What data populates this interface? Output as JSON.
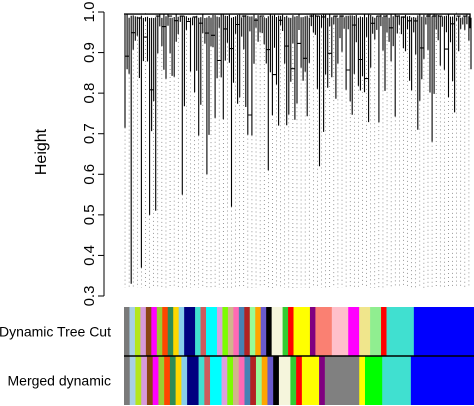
{
  "chart_data": {
    "type": "dendrogram",
    "ylabel": "Height",
    "ylim": [
      0.3,
      1.0
    ],
    "yticks": [
      "0.3",
      "0.4",
      "0.5",
      "0.6",
      "0.7",
      "0.8",
      "0.9",
      "1.0"
    ],
    "grid": false,
    "notable_branch_heights": [
      0.33,
      0.37,
      0.5,
      0.51,
      0.52,
      0.55,
      0.6,
      0.61,
      0.62,
      0.68,
      0.71,
      0.78,
      0.83
    ],
    "color_rows": [
      {
        "label": "Dynamic Tree Cut",
        "segments": [
          {
            "color": "#7a7a7a",
            "weight": 1
          },
          {
            "color": "#a8d0e6",
            "weight": 1
          },
          {
            "color": "#b5e61d",
            "weight": 1
          },
          {
            "color": "#d89adb",
            "weight": 1
          },
          {
            "color": "#8b4513",
            "weight": 1
          },
          {
            "color": "#ff00ff",
            "weight": 1
          },
          {
            "color": "#9acd32",
            "weight": 1
          },
          {
            "color": "#ff4500",
            "weight": 1
          },
          {
            "color": "#2e8b57",
            "weight": 1
          },
          {
            "color": "#ffd700",
            "weight": 1
          },
          {
            "color": "#87ceeb",
            "weight": 1
          },
          {
            "color": "#000080",
            "weight": 2
          },
          {
            "color": "#40e0d0",
            "weight": 1
          },
          {
            "color": "#cd5c5c",
            "weight": 1
          },
          {
            "color": "#00ffff",
            "weight": 2
          },
          {
            "color": "#dda0dd",
            "weight": 1
          },
          {
            "color": "#7cfc00",
            "weight": 1
          },
          {
            "color": "#d2b48c",
            "weight": 1
          },
          {
            "color": "#ff69b4",
            "weight": 1
          },
          {
            "color": "#4682b4",
            "weight": 1
          },
          {
            "color": "#b22222",
            "weight": 1
          },
          {
            "color": "#98fb98",
            "weight": 1
          },
          {
            "color": "#ffa500",
            "weight": 1
          },
          {
            "color": "#6a5acd",
            "weight": 1
          },
          {
            "color": "#000000",
            "weight": 1
          },
          {
            "color": "#f5f5dc",
            "weight": 2
          },
          {
            "color": "#32cd32",
            "weight": 1
          },
          {
            "color": "#ff0000",
            "weight": 1
          },
          {
            "color": "#ffff00",
            "weight": 3
          },
          {
            "color": "#800080",
            "weight": 1
          },
          {
            "color": "#fa8072",
            "weight": 3
          },
          {
            "color": "#ffc0cb",
            "weight": 3
          },
          {
            "color": "#ff00ff",
            "weight": 2
          },
          {
            "color": "#f0e68c",
            "weight": 2
          },
          {
            "color": "#90ee90",
            "weight": 2
          },
          {
            "color": "#ff0000",
            "weight": 1
          },
          {
            "color": "#40e0d0",
            "weight": 5
          },
          {
            "color": "#0000ff",
            "weight": 11
          }
        ]
      },
      {
        "label": "Merged dynamic",
        "segments": [
          {
            "color": "#7a7a7a",
            "weight": 1
          },
          {
            "color": "#a8d0e6",
            "weight": 1
          },
          {
            "color": "#b5e61d",
            "weight": 1
          },
          {
            "color": "#d89adb",
            "weight": 1
          },
          {
            "color": "#8b4513",
            "weight": 1
          },
          {
            "color": "#ff00ff",
            "weight": 1
          },
          {
            "color": "#9acd32",
            "weight": 1
          },
          {
            "color": "#ff4500",
            "weight": 1
          },
          {
            "color": "#2e8b57",
            "weight": 1
          },
          {
            "color": "#ffd700",
            "weight": 1
          },
          {
            "color": "#87ceeb",
            "weight": 1
          },
          {
            "color": "#000080",
            "weight": 2
          },
          {
            "color": "#40e0d0",
            "weight": 1
          },
          {
            "color": "#cd5c5c",
            "weight": 1
          },
          {
            "color": "#00ffff",
            "weight": 2
          },
          {
            "color": "#dda0dd",
            "weight": 1
          },
          {
            "color": "#7cfc00",
            "weight": 1
          },
          {
            "color": "#d2b48c",
            "weight": 1
          },
          {
            "color": "#ff69b4",
            "weight": 1
          },
          {
            "color": "#4682b4",
            "weight": 1
          },
          {
            "color": "#b22222",
            "weight": 1
          },
          {
            "color": "#98fb98",
            "weight": 1
          },
          {
            "color": "#ffa500",
            "weight": 1
          },
          {
            "color": "#6a5acd",
            "weight": 1
          },
          {
            "color": "#000000",
            "weight": 1
          },
          {
            "color": "#f5f5dc",
            "weight": 2
          },
          {
            "color": "#32cd32",
            "weight": 1
          },
          {
            "color": "#ff0000",
            "weight": 1
          },
          {
            "color": "#ffff00",
            "weight": 3
          },
          {
            "color": "#800080",
            "weight": 1
          },
          {
            "color": "#808080",
            "weight": 6
          },
          {
            "color": "#ffff00",
            "weight": 1
          },
          {
            "color": "#00ff00",
            "weight": 3
          },
          {
            "color": "#40e0d0",
            "weight": 5
          },
          {
            "color": "#0000ff",
            "weight": 11
          }
        ]
      }
    ]
  }
}
